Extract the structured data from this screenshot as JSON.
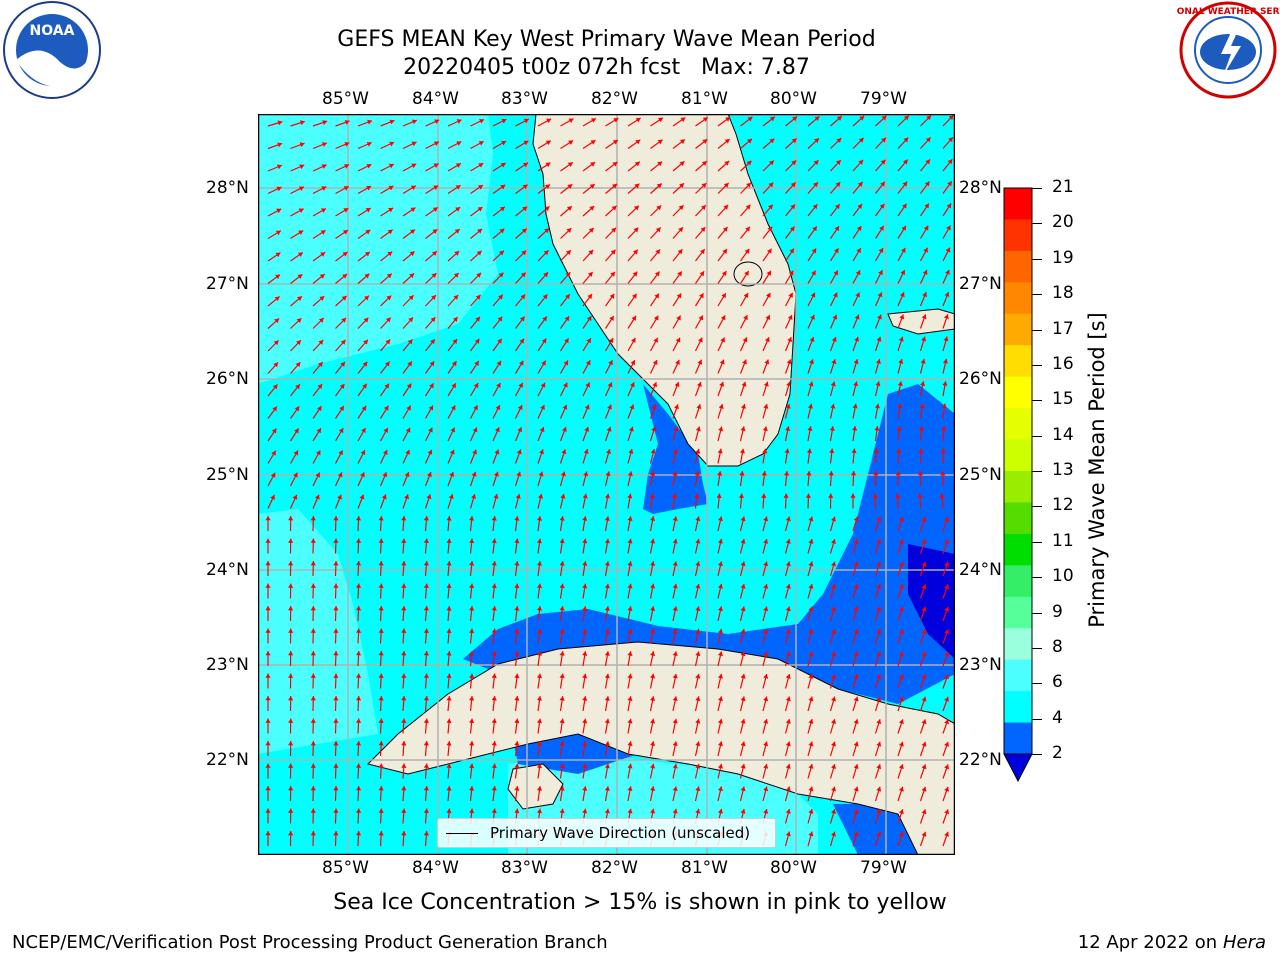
{
  "title": {
    "line1": "GEFS MEAN Key West Primary Wave Mean Period",
    "line2": "20220405 t00z 072h fcst   Max: 7.87"
  },
  "logos": {
    "left": "noa-logo",
    "left_text": "NOAA",
    "right": "nws-logo",
    "right_text": "NATIONAL WEATHER SERVICE"
  },
  "map": {
    "lon_ticks": [
      "85°W",
      "84°W",
      "83°W",
      "82°W",
      "81°W",
      "80°W",
      "79°W"
    ],
    "lat_ticks": [
      "28°N",
      "27°N",
      "26°N",
      "25°N",
      "24°N",
      "23°N",
      "22°N"
    ],
    "legend_label": "Primary Wave Direction (unscaled)",
    "colors": {
      "land": "#efecdc",
      "arrow": "#ff0000",
      "cyan_4_6": "#00ffff",
      "cyan_6_8": "#4cffff",
      "blue_2_4": "#0066ff",
      "dark_blue_lt_2": "#0000dd",
      "grid": "#b0b0b0"
    }
  },
  "colorbar": {
    "label": "Primary Wave Mean Period [s]",
    "ticks": [
      "21",
      "20",
      "19",
      "18",
      "17",
      "16",
      "15",
      "14",
      "13",
      "12",
      "11",
      "10",
      "9",
      "8",
      "6",
      "4",
      "2"
    ],
    "colors": [
      "#ff0000",
      "#ff3300",
      "#ff6600",
      "#ff8800",
      "#ffaa00",
      "#ffdd00",
      "#ffff00",
      "#e6ff00",
      "#ccff00",
      "#99ee00",
      "#55dd00",
      "#00dd00",
      "#33ee66",
      "#55ff99",
      "#99ffdd",
      "#4cffff",
      "#00ffff",
      "#0066ff"
    ],
    "under_color": "#0000dd"
  },
  "footer": {
    "ice_note": "Sea Ice Concentration > 15% is shown in pink to yellow",
    "producer": "NCEP/EMC/Verification Post Processing Product Generation Branch",
    "date": "12 Apr 2022 on ",
    "machine": "Hera"
  }
}
